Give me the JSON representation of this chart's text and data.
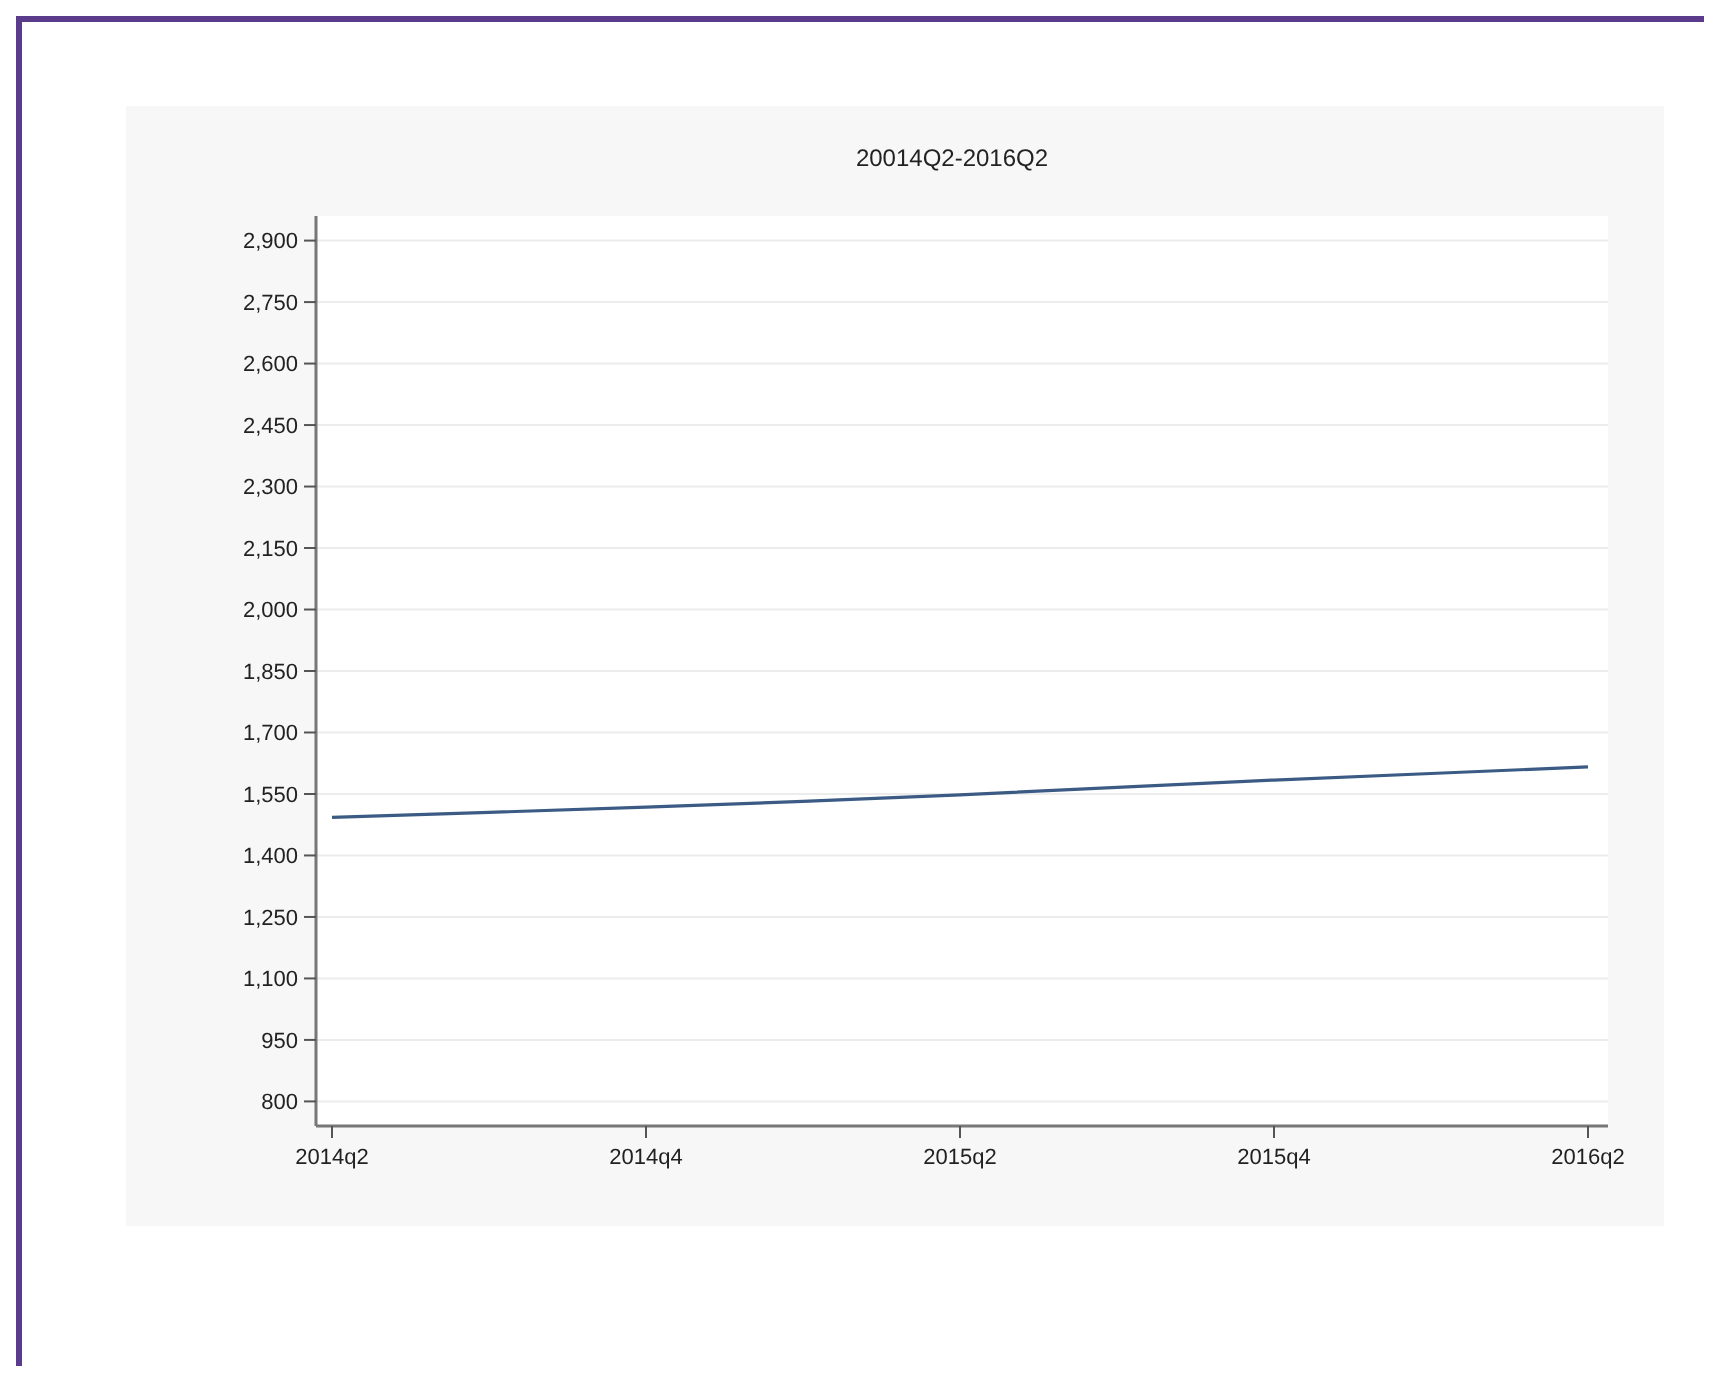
{
  "chart_data": {
    "type": "line",
    "title": "20014Q2-2016Q2",
    "categories": [
      "2014q2",
      null,
      "2014q4",
      null,
      "2015q2",
      null,
      "2015q4",
      null,
      "2016q2"
    ],
    "series": [
      {
        "color": "#3b5b85",
        "values": [
          1493,
          1505,
          1518,
          1532,
          1548,
          1566,
          1584,
          1600,
          1616
        ]
      }
    ],
    "ylim": [
      740,
      2960
    ],
    "yticks": [
      {
        "value": 800,
        "label": "800"
      },
      {
        "value": 950,
        "label": "950"
      },
      {
        "value": 1100,
        "label": "1,100"
      },
      {
        "value": 1250,
        "label": "1,250"
      },
      {
        "value": 1400,
        "label": "1,400"
      },
      {
        "value": 1550,
        "label": "1,550"
      },
      {
        "value": 1700,
        "label": "1,700"
      },
      {
        "value": 1850,
        "label": "1,850"
      },
      {
        "value": 2000,
        "label": "2,000"
      },
      {
        "value": 2150,
        "label": "2,150"
      },
      {
        "value": 2300,
        "label": "2,300"
      },
      {
        "value": 2450,
        "label": "2,450"
      },
      {
        "value": 2600,
        "label": "2,600"
      },
      {
        "value": 2750,
        "label": "2,750"
      },
      {
        "value": 2900,
        "label": "2,900"
      }
    ],
    "grid": "y",
    "marker": "none",
    "line_style": "solid"
  }
}
